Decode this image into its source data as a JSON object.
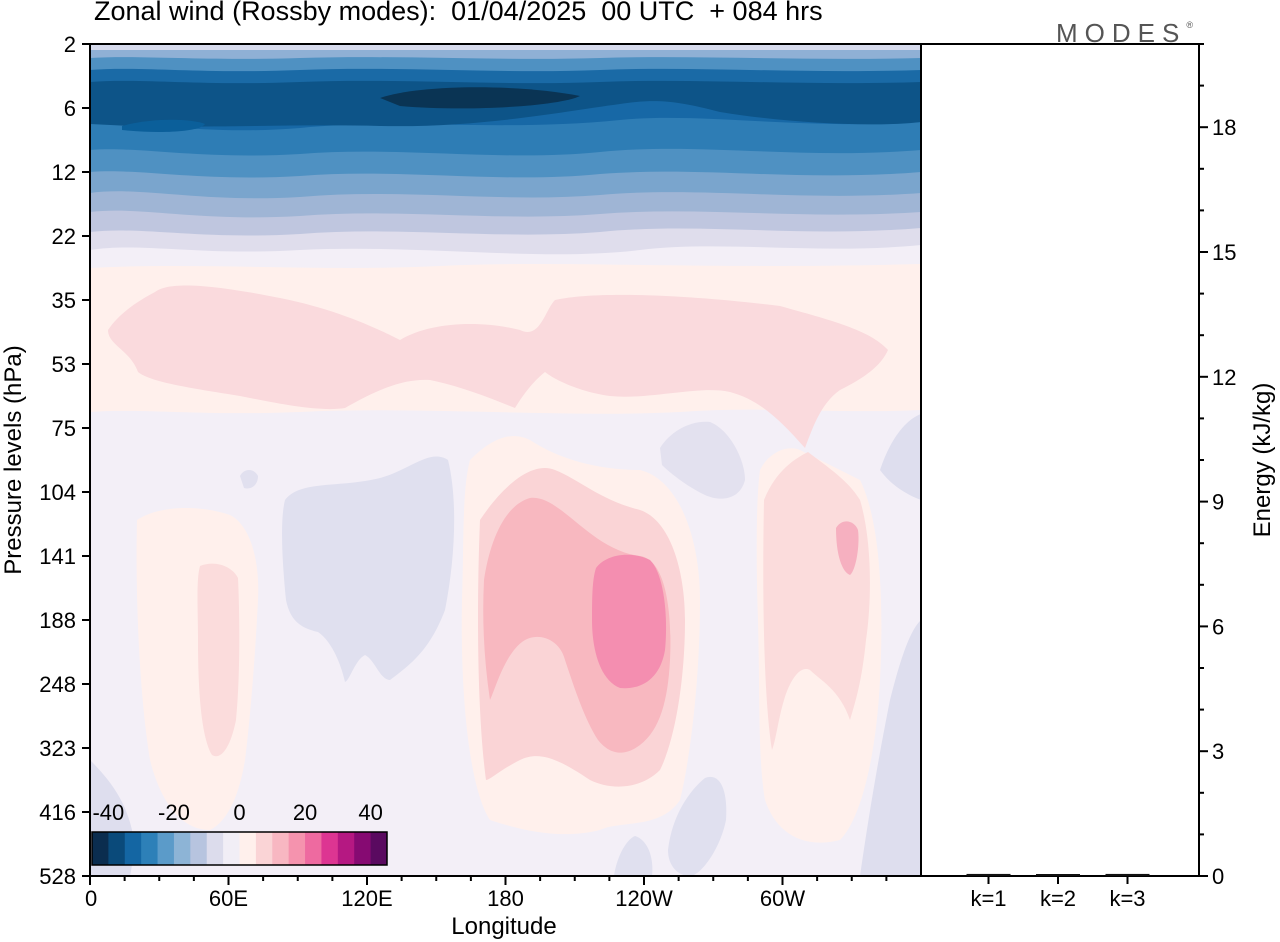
{
  "title": "Zonal wind (Rossby modes):  01/04/2025  00 UTC  + 084 hrs",
  "brand": "MODES",
  "brand_mark": "®",
  "chart_data": [
    {
      "type": "heatmap",
      "title": "Zonal wind (Rossby modes):  01/04/2025  00 UTC  + 084 hrs",
      "xlabel": "Longitude",
      "ylabel": "Pressure levels (hPa)",
      "x_ticks": [
        "0",
        "60E",
        "120E",
        "180",
        "120W",
        "60W"
      ],
      "x_tick_degrees": [
        0,
        60,
        120,
        180,
        240,
        300
      ],
      "xlim": [
        0,
        360
      ],
      "y_ticks": [
        "2",
        "6",
        "12",
        "22",
        "35",
        "53",
        "75",
        "104",
        "141",
        "188",
        "248",
        "323",
        "416",
        "528"
      ],
      "y_scale": "log",
      "y_inverted": true,
      "colorbar": {
        "labels": [
          "-40",
          "-20",
          "0",
          "20",
          "40"
        ],
        "label_values": [
          -40,
          -20,
          0,
          20,
          40
        ],
        "range": [
          -45,
          45
        ],
        "bins": 18,
        "colors": [
          "#0b2d4f",
          "#0a4a7a",
          "#1466a3",
          "#2d80b8",
          "#5b9bc9",
          "#8db4d6",
          "#b7c4df",
          "#dcdcec",
          "#f1eef6",
          "#fff0ec",
          "#fad4d6",
          "#f8b7c2",
          "#f593ae",
          "#ee6aa0",
          "#dd3592",
          "#b51882",
          "#860a72",
          "#5a0a60"
        ]
      },
      "features": [
        {
          "level_range": "2-22 hPa",
          "value_range": [
            -40,
            -5
          ],
          "note": "strong easterlies across all longitudes"
        },
        {
          "level_range": "35-75 hPa",
          "value_range": [
            0,
            5
          ]
        },
        {
          "center_lon": 235,
          "center_level": 188,
          "peak": 15
        },
        {
          "center_lon": 190,
          "center_level": 188,
          "peak": 10
        },
        {
          "center_lon": 92,
          "center_level": 141,
          "peak": -3
        }
      ]
    },
    {
      "type": "bar",
      "categories": [
        "k=1",
        "k=2",
        "k=3"
      ],
      "values": [
        0.05,
        0.03,
        0.05
      ],
      "ylabel": "Energy (kJ/kg)",
      "y_ticks": [
        "0",
        "3",
        "6",
        "9",
        "12",
        "15",
        "18"
      ],
      "ylim": [
        0,
        20
      ]
    }
  ]
}
